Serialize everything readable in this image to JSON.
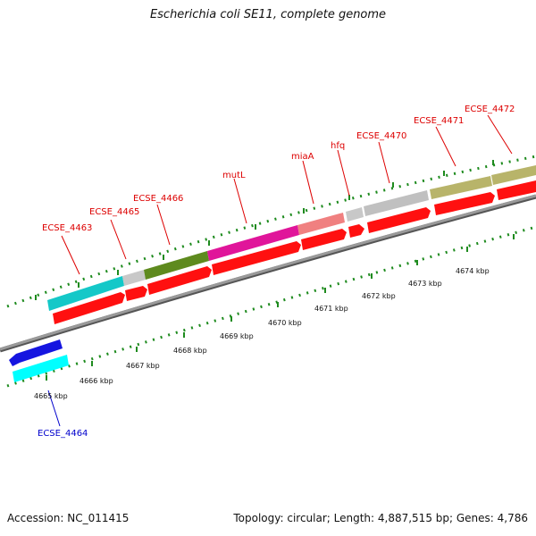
{
  "title": "Escherichia coli SE11, complete genome",
  "footer": {
    "accession": "Accession: NC_011415",
    "summary": "Topology: circular; Length: 4,887,515 bp; Genes: 4,786"
  },
  "colors": {
    "label_red": "#dd0000",
    "label_blue": "#0000cc",
    "cds_red": "#ff1010",
    "tick_green": "#1e8b1e",
    "backbone": "#8c8c8c"
  },
  "scale_labels": [
    "4665 kbp",
    "4666 kbp",
    "4667 kbp",
    "4668 kbp",
    "4669 kbp",
    "4670 kbp",
    "4671 kbp",
    "4672 kbp",
    "4673 kbp",
    "4674 kbp"
  ],
  "genes": [
    {
      "name": "ECSE_4463",
      "color": "#dd0000"
    },
    {
      "name": "ECSE_4465",
      "color": "#dd0000"
    },
    {
      "name": "ECSE_4466",
      "color": "#dd0000"
    },
    {
      "name": "mutL",
      "color": "#dd0000"
    },
    {
      "name": "miaA",
      "color": "#dd0000"
    },
    {
      "name": "hfq",
      "color": "#dd0000"
    },
    {
      "name": "ECSE_4470",
      "color": "#dd0000"
    },
    {
      "name": "ECSE_4471",
      "color": "#dd0000"
    },
    {
      "name": "ECSE_4472",
      "color": "#dd0000"
    },
    {
      "name": "ECSE_4464",
      "color": "#0000cc"
    }
  ]
}
